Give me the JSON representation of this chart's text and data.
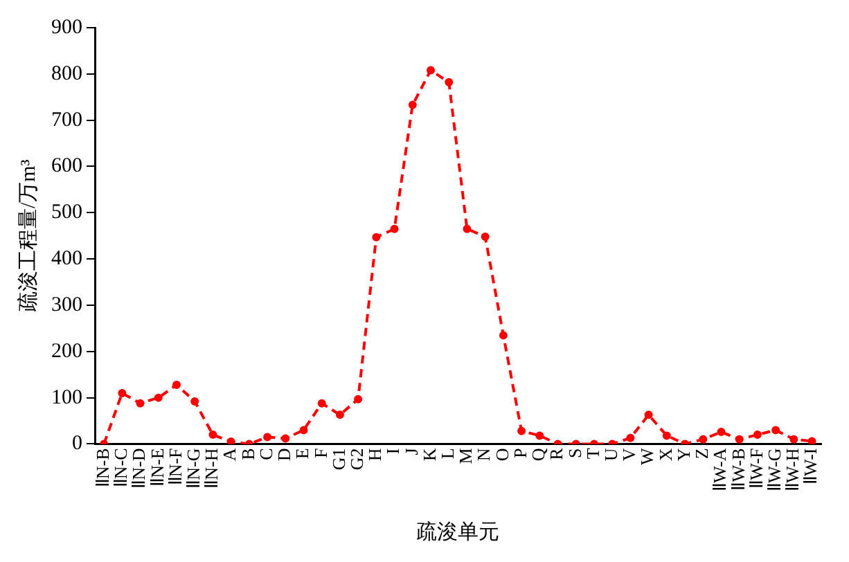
{
  "chart_data": {
    "type": "line",
    "xlabel": "疏浚单元",
    "ylabel": "疏浚工程量/万m³",
    "categories": [
      "ⅡN-B",
      "ⅡN-C",
      "ⅡN-D",
      "ⅡN-E",
      "ⅡN-F",
      "ⅡN-G",
      "ⅡN-H",
      "A",
      "B",
      "C",
      "D",
      "E",
      "F",
      "G1",
      "G2",
      "H",
      "I",
      "J",
      "K",
      "L",
      "M",
      "N",
      "O",
      "P",
      "Q",
      "R",
      "S",
      "T",
      "U",
      "V",
      "W",
      "X",
      "Y",
      "Z",
      "ⅡW-A",
      "ⅡW-B",
      "ⅡW-F",
      "ⅡW-G",
      "ⅡW-H",
      "ⅡW-I"
    ],
    "series": [
      {
        "color": "#ff0000",
        "values": [
          0,
          110,
          88,
          100,
          128,
          92,
          20,
          5,
          0,
          15,
          12,
          30,
          88,
          63,
          97,
          447,
          465,
          733,
          808,
          782,
          465,
          448,
          235,
          28,
          18,
          0,
          0,
          0,
          0,
          13,
          63,
          18,
          0,
          10,
          26,
          10,
          20,
          30,
          10,
          6
        ]
      }
    ],
    "ylim": [
      0,
      900
    ],
    "yticks": [
      0,
      100,
      200,
      300,
      400,
      500,
      600,
      700,
      800,
      900
    ],
    "grid": false,
    "legend": false,
    "marker": "circle",
    "line_style": "dashed"
  }
}
